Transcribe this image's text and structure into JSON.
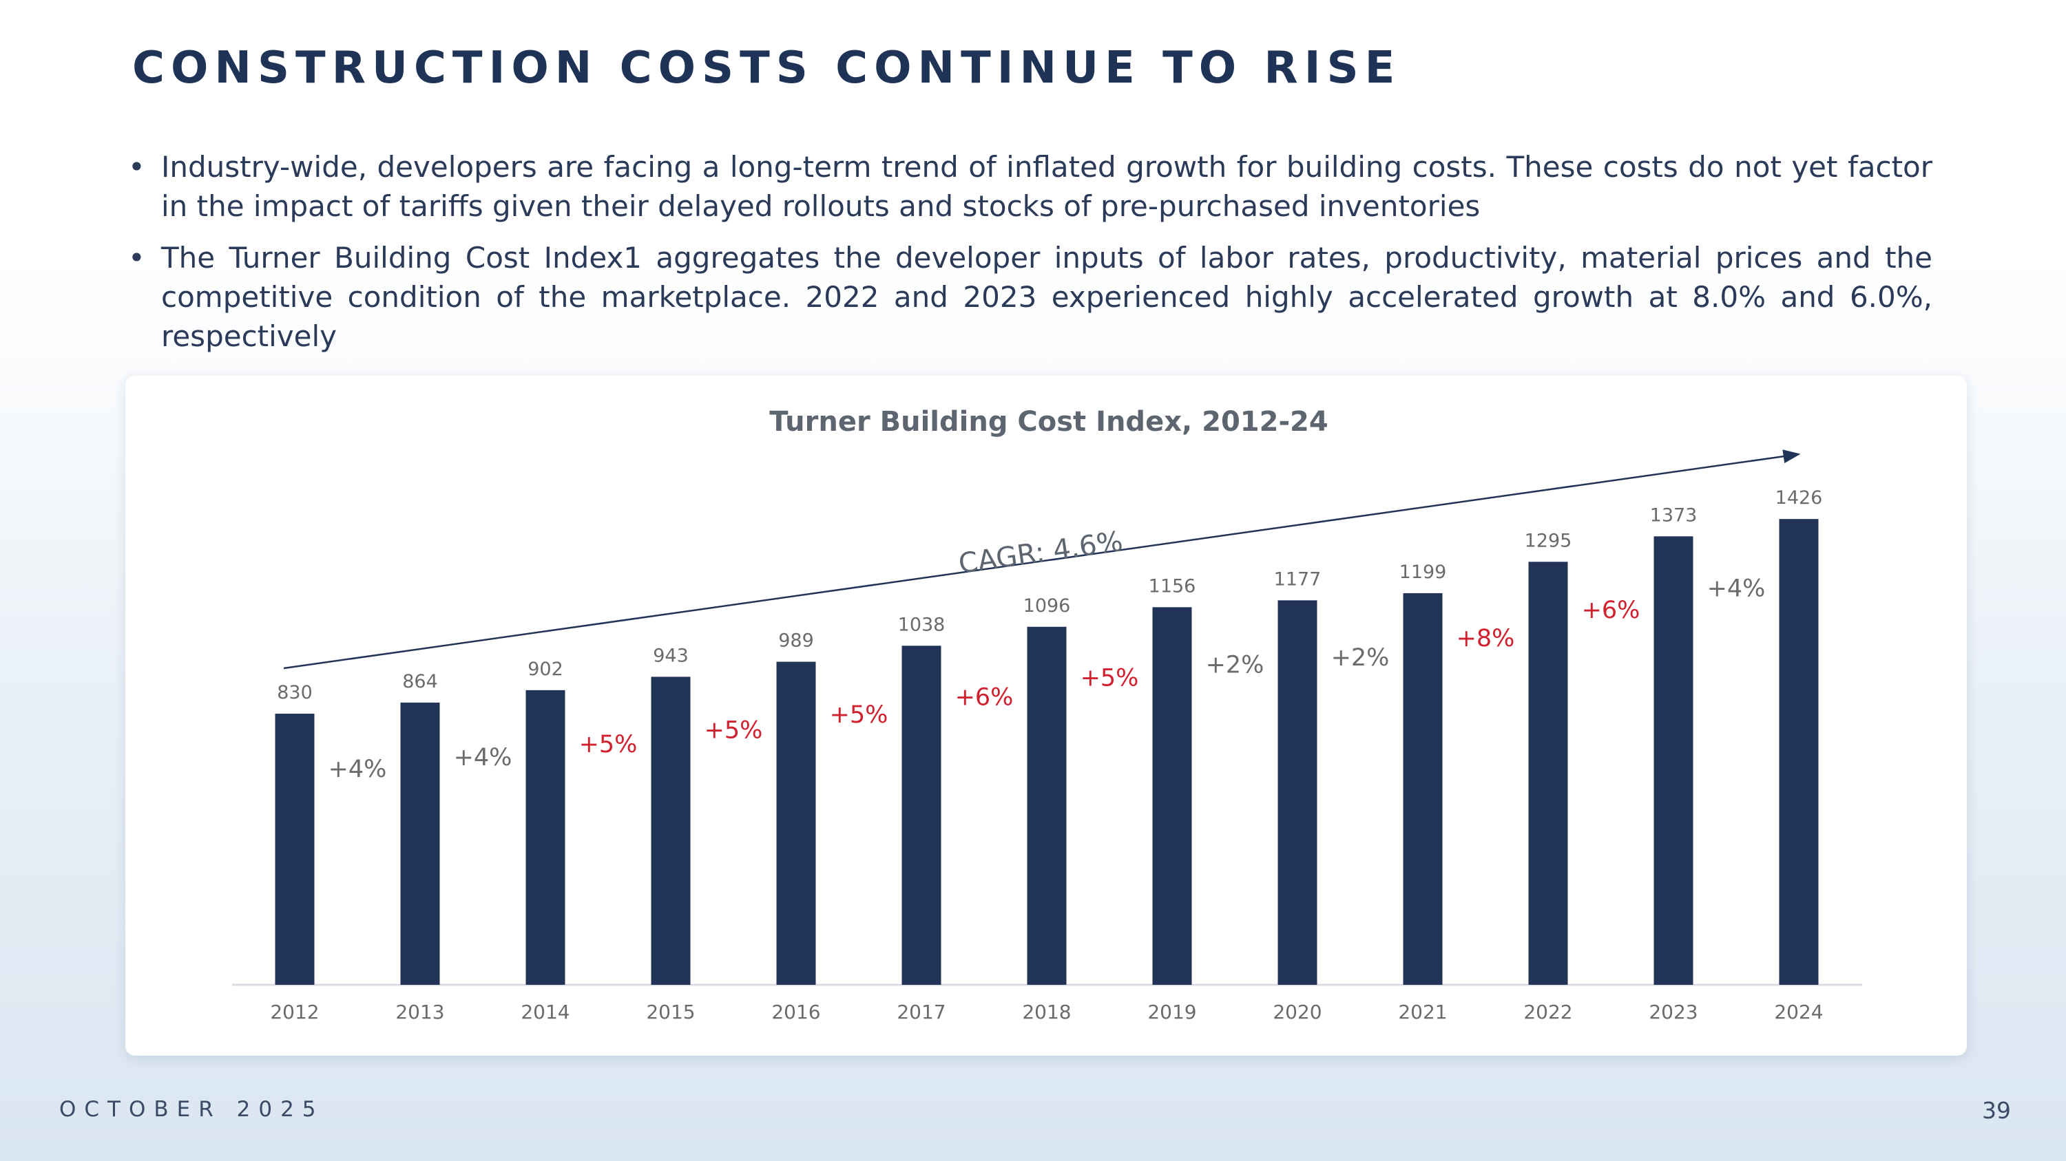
{
  "slide": {
    "title": "CONSTRUCTION COSTS CONTINUE TO RISE",
    "bullets": [
      "Industry-wide, developers are facing a long-term trend of inflated growth for building costs. These costs do not yet factor in the impact of tariffs given their delayed rollouts and stocks of pre-purchased inventories",
      "The Turner Building Cost Index1 aggregates the developer inputs of labor rates, productivity, material prices and the competitive condition of the marketplace. 2022 and 2023 experienced highly accelerated growth at 8.0% and 6.0%, respectively"
    ],
    "bullet_glyph": "•",
    "footer_date": "OCTOBER 2025",
    "page_number": "39"
  },
  "chart_data": {
    "type": "bar",
    "title": "Turner Building Cost Index, 2012-24",
    "xlabel": "",
    "ylabel": "",
    "categories": [
      "2012",
      "2013",
      "2014",
      "2015",
      "2016",
      "2017",
      "2018",
      "2019",
      "2020",
      "2021",
      "2022",
      "2023",
      "2024"
    ],
    "values": [
      830,
      864,
      902,
      943,
      989,
      1038,
      1096,
      1156,
      1177,
      1199,
      1295,
      1373,
      1426
    ],
    "growth_labels": [
      "+4%",
      "+4%",
      "+5%",
      "+5%",
      "+5%",
      "+6%",
      "+5%",
      "+2%",
      "+2%",
      "+8%",
      "+6%",
      "+4%"
    ],
    "growth_highlight": [
      false,
      false,
      true,
      true,
      true,
      true,
      true,
      false,
      false,
      true,
      true,
      false
    ],
    "annotation": "CAGR: 4.6%",
    "grid": false,
    "legend": "none",
    "colors": {
      "bar": "#213457",
      "highlight": "#d0212f",
      "muted": "#6b6b6b",
      "axis": "#d9dde3",
      "title": "#5d6670"
    }
  }
}
